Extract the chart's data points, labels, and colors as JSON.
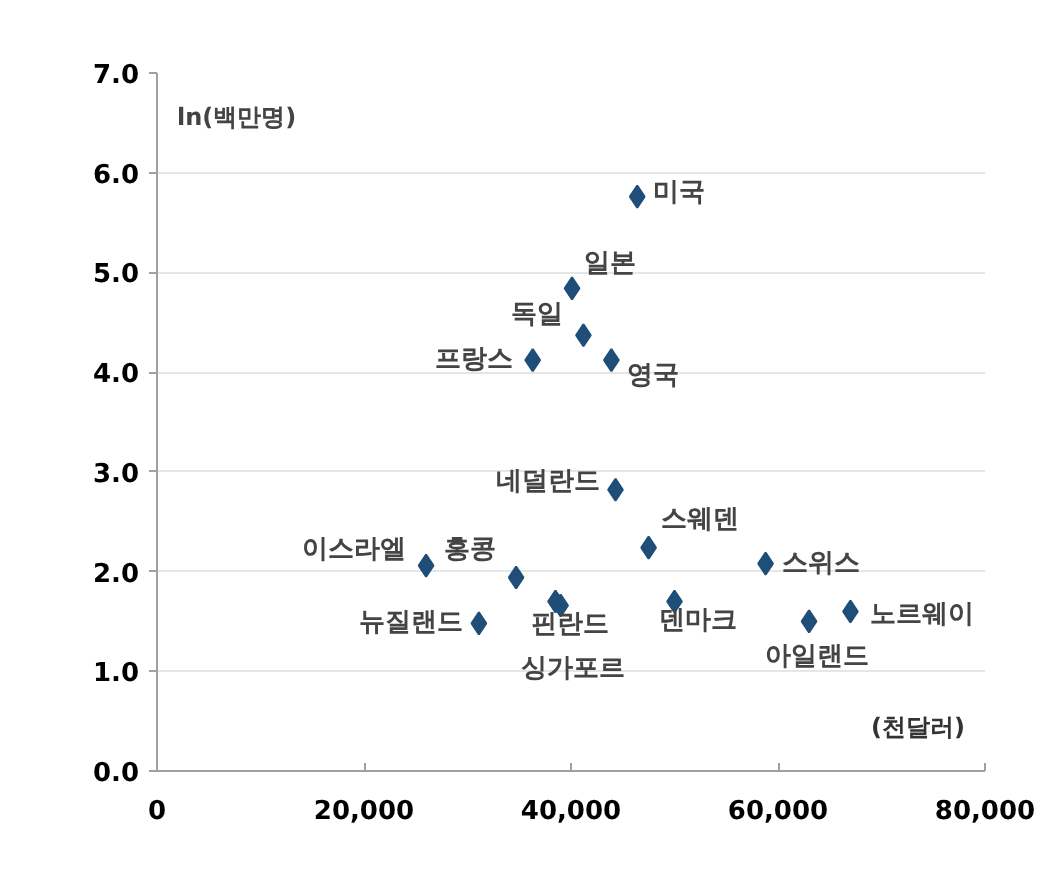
{
  "chart_data": {
    "type": "scatter",
    "xlabel": "(천달러)",
    "ylabel": "ln(백만명)",
    "x": [
      46400,
      40100,
      41200,
      36300,
      43900,
      44300,
      47500,
      58800,
      26000,
      34700,
      38500,
      39000,
      50000,
      31100,
      63000,
      67000
    ],
    "series": [
      {
        "color": "#1f4e79",
        "values": [
          5.76,
          4.84,
          4.37,
          4.12,
          4.12,
          2.82,
          2.24,
          2.08,
          2.06,
          1.94,
          1.7,
          1.66,
          1.7,
          1.48,
          1.5,
          1.6
        ]
      }
    ],
    "annotations": [
      {
        "text": "미국",
        "x": 46400,
        "y": 5.76
      },
      {
        "text": "일본",
        "x": 40100,
        "y": 4.84
      },
      {
        "text": "독일",
        "x": 41200,
        "y": 4.37
      },
      {
        "text": "프랑스",
        "x": 36300,
        "y": 4.12
      },
      {
        "text": "영국",
        "x": 43900,
        "y": 4.12
      },
      {
        "text": "네덜란드",
        "x": 44300,
        "y": 2.82
      },
      {
        "text": "스웨덴",
        "x": 47500,
        "y": 2.24
      },
      {
        "text": "스위스",
        "x": 58800,
        "y": 2.08
      },
      {
        "text": "이스라엘",
        "x": 26000,
        "y": 2.06
      },
      {
        "text": "홍콩",
        "x": 34700,
        "y": 1.94
      },
      {
        "text": "핀란드",
        "x": 38500,
        "y": 1.7
      },
      {
        "text": "싱가포르",
        "x": 39000,
        "y": 1.66
      },
      {
        "text": "덴마크",
        "x": 50000,
        "y": 1.7
      },
      {
        "text": "뉴질랜드",
        "x": 31100,
        "y": 1.48
      },
      {
        "text": "아일랜드",
        "x": 63000,
        "y": 1.5
      },
      {
        "text": "노르웨이",
        "x": 67000,
        "y": 1.6
      }
    ],
    "xlim": [
      0,
      80000
    ],
    "ylim": [
      0,
      7
    ],
    "xticks": [
      {
        "value": 0,
        "label": "0"
      },
      {
        "value": 20000,
        "label": "20,000"
      },
      {
        "value": 40000,
        "label": "40,000"
      },
      {
        "value": 60000,
        "label": "60,000"
      },
      {
        "value": 80000,
        "label": "80,000"
      }
    ],
    "yticks": [
      {
        "value": 0,
        "label": "0.0"
      },
      {
        "value": 1,
        "label": "1.0"
      },
      {
        "value": 2,
        "label": "2.0"
      },
      {
        "value": 3,
        "label": "3.0"
      },
      {
        "value": 4,
        "label": "4.0"
      },
      {
        "value": 5,
        "label": "5.0"
      },
      {
        "value": 6,
        "label": "6.0"
      },
      {
        "value": 7,
        "label": "7.0"
      }
    ],
    "grid": "y",
    "marker": "diamond"
  }
}
